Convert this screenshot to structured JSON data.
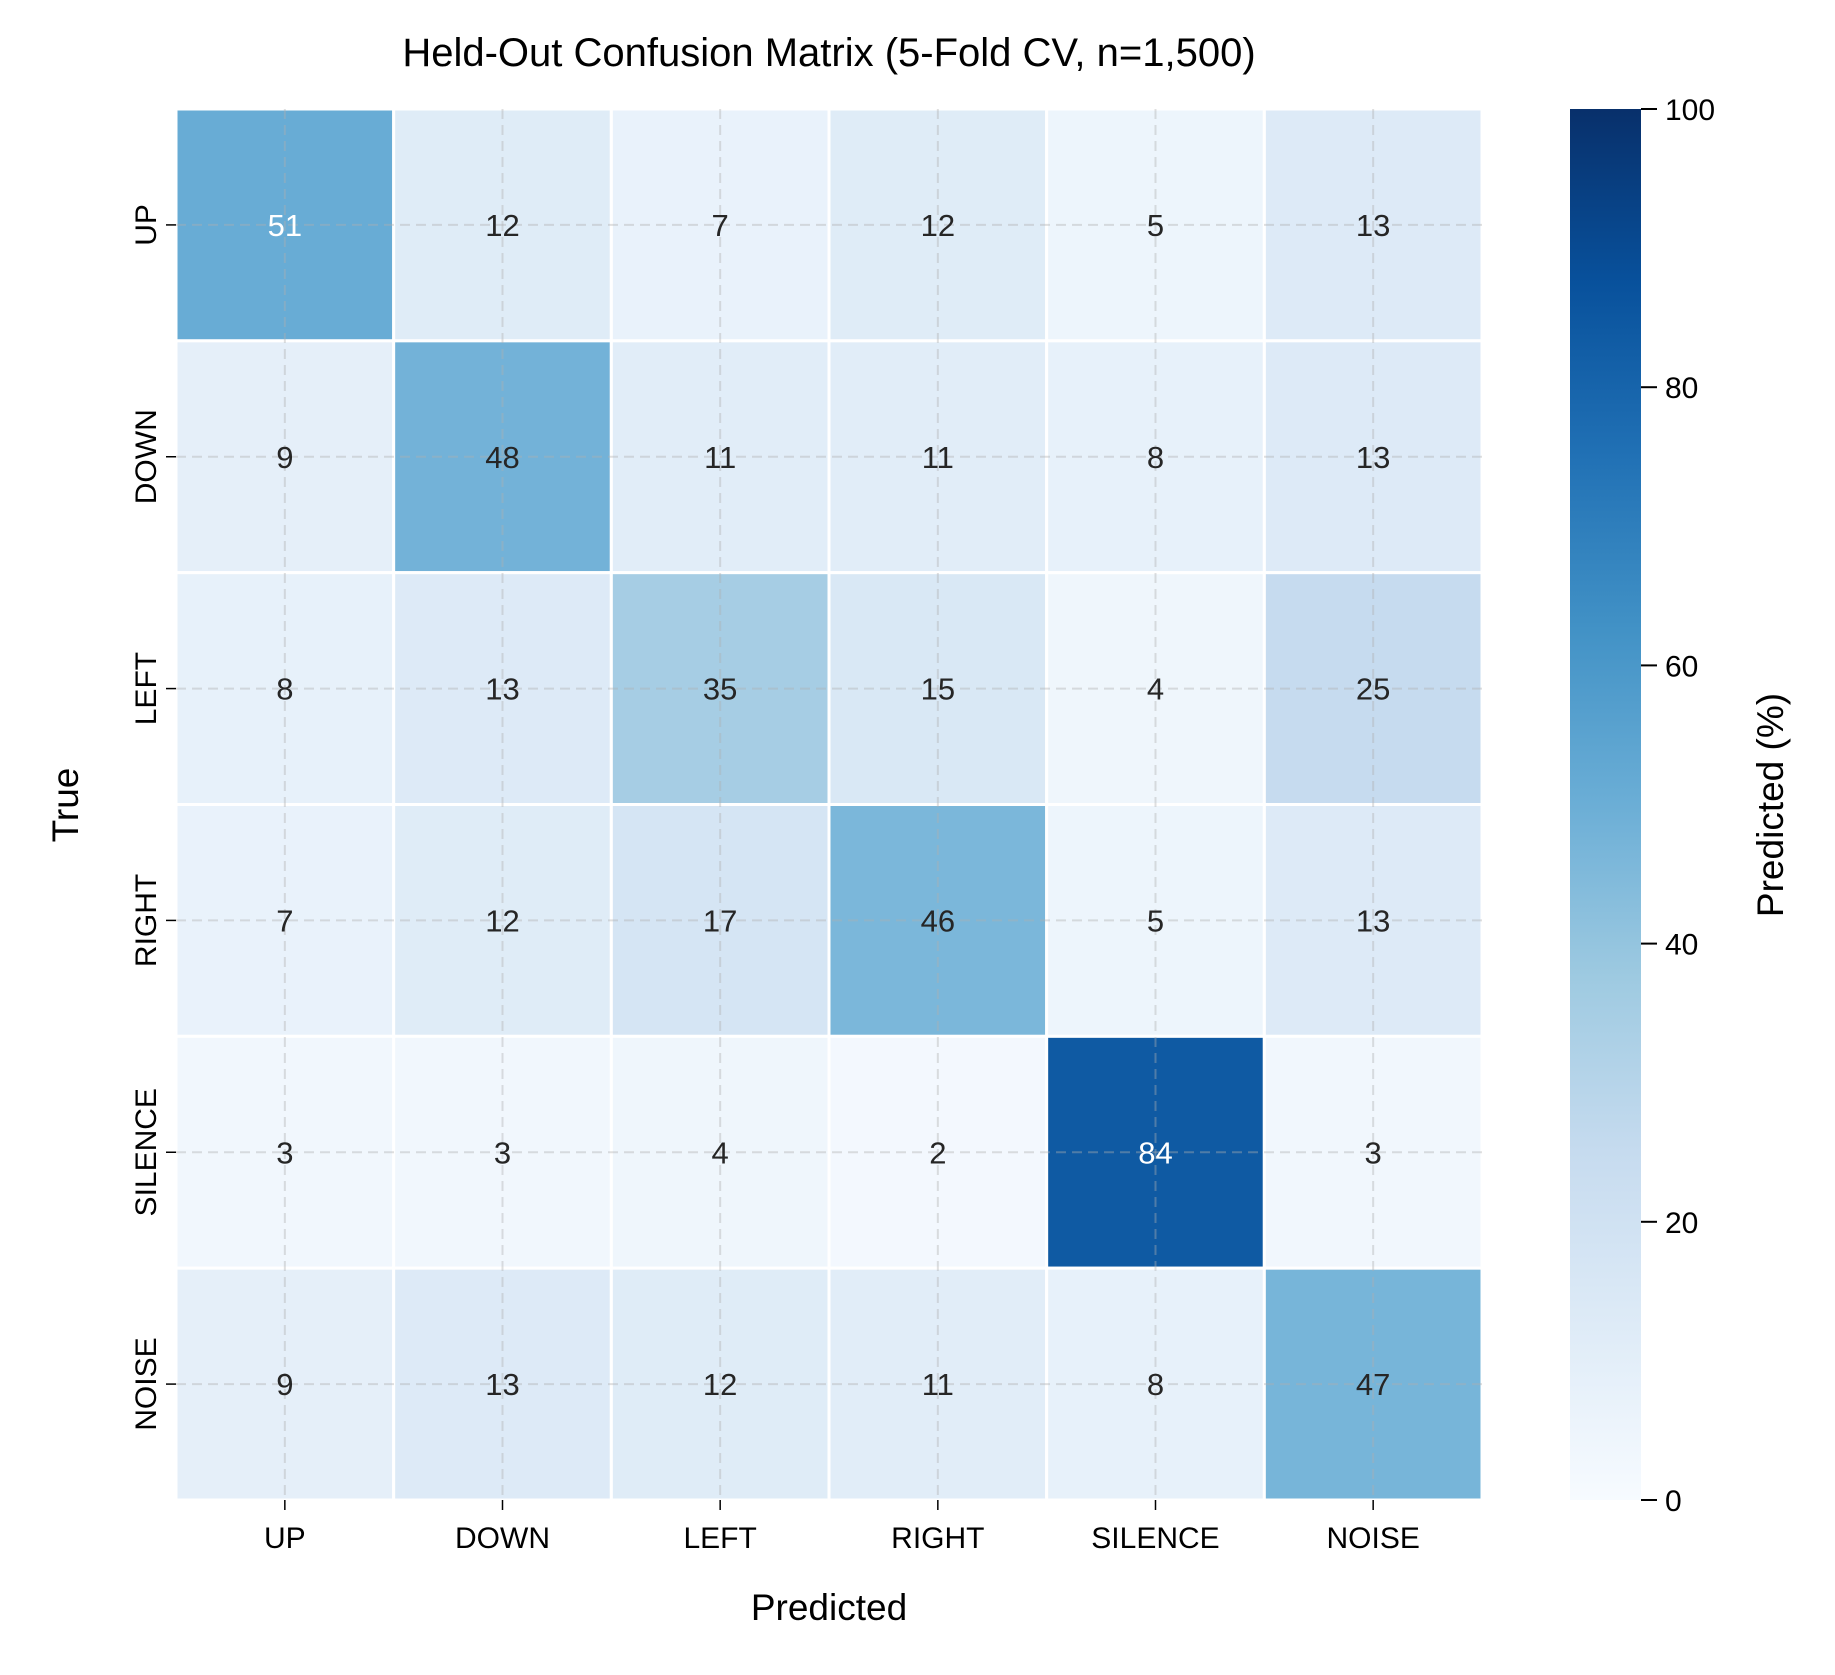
{
  "chart_data": {
    "type": "heatmap",
    "title": "Held-Out Confusion Matrix (5-Fold CV, n=1,500)",
    "xlabel": "Predicted",
    "ylabel": "True",
    "x_categories": [
      "UP",
      "DOWN",
      "LEFT",
      "RIGHT",
      "SILENCE",
      "NOISE"
    ],
    "y_categories": [
      "UP",
      "DOWN",
      "LEFT",
      "RIGHT",
      "SILENCE",
      "NOISE"
    ],
    "values": [
      [
        51,
        12,
        7,
        12,
        5,
        13
      ],
      [
        9,
        48,
        11,
        11,
        8,
        13
      ],
      [
        8,
        13,
        35,
        15,
        4,
        25
      ],
      [
        7,
        12,
        17,
        46,
        5,
        13
      ],
      [
        3,
        3,
        4,
        2,
        84,
        3
      ],
      [
        9,
        13,
        12,
        11,
        8,
        47
      ]
    ],
    "colormap": "Blues",
    "colorbar": {
      "label": "Predicted (%)",
      "range": [
        0,
        100
      ],
      "ticks": [
        "0",
        "20",
        "40",
        "60",
        "80",
        "100"
      ]
    },
    "grid": true,
    "annotation_colors": {
      "dark": "#262626",
      "light": "#ffffff"
    }
  }
}
